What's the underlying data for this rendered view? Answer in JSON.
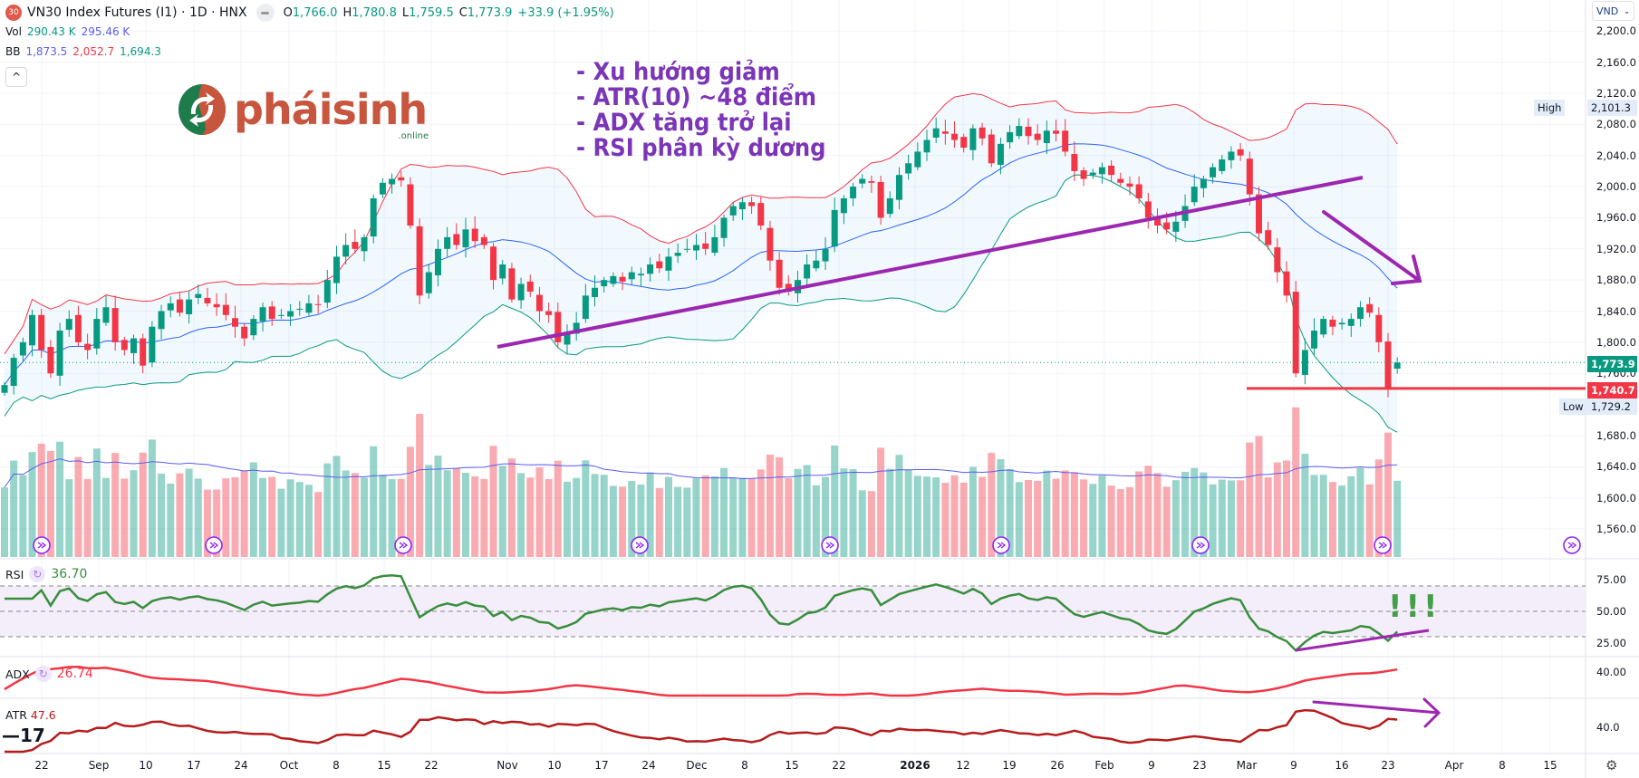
{
  "header": {
    "badge": "30",
    "title": "VN30 Index Futures (I1) · 1D · HNX",
    "o_label": "O",
    "o": "1,766.0",
    "h_label": "H",
    "h": "1,780.8",
    "l_label": "L",
    "l": "1,759.5",
    "c_label": "C",
    "c": "1,773.9",
    "change": "+33.9 (+1.95%)"
  },
  "vol": {
    "label": "Vol",
    "value": "290.43 K",
    "ma": "295.46 K"
  },
  "bb": {
    "label": "BB",
    "basis": "1,873.5",
    "upper": "2,052.7",
    "lower": "1,694.3"
  },
  "collapse_icon": "^",
  "currency": "VND",
  "logo": {
    "text": "pháisinh",
    "sub": ".online"
  },
  "notes": [
    "- Xu hướng giảm",
    "- ATR(10) ~48 điểm",
    "- ADX tăng trở lại",
    "- RSI phân kỳ dương"
  ],
  "exclaim": "!!!",
  "price_axis": {
    "ticks": [
      "2,200.0",
      "2,160.0",
      "2,120.0",
      "2,080.0",
      "2,040.0",
      "2,000.0",
      "1,960.0",
      "1,920.0",
      "1,880.0",
      "1,840.0",
      "1,800.0",
      "1,760.0",
      "1,680.0",
      "1,640.0",
      "1,600.0",
      "1,560.0"
    ]
  },
  "tags": {
    "high_label": "High",
    "high": "2,101.3",
    "last": "1,773.9",
    "level": "1,740.7",
    "low_label": "Low",
    "low": "1,729.2"
  },
  "rsi": {
    "label": "RSI",
    "value": "36.70",
    "ticks": [
      "75.00",
      "50.00",
      "25.00"
    ]
  },
  "adx": {
    "label": "ADX",
    "value": "26.74",
    "tick": "40.00"
  },
  "atr": {
    "label": "ATR",
    "value": "47.6",
    "tick": "40.0"
  },
  "time_axis": [
    "22",
    "Sep",
    "10",
    "17",
    "24",
    "Oct",
    "8",
    "15",
    "22",
    "Nov",
    "10",
    "17",
    "24",
    "Dec",
    "8",
    "15",
    "22",
    "2026",
    "12",
    "19",
    "26",
    "Feb",
    "9",
    "23",
    "Mar",
    "9",
    "16",
    "23",
    "Apr",
    "8",
    "15"
  ],
  "colors": {
    "up": "#089981",
    "down": "#f23645",
    "bb_basis": "#2962ff",
    "bb_upper": "#f23645",
    "bb_lower": "#089981",
    "rsi": "#388e3c",
    "adx": "#f23645",
    "atr": "#b71c1c",
    "drawing": "#9c27b0",
    "note_text": "#7b35b7"
  },
  "chart_data": {
    "type": "candlestick",
    "symbol": "VN30 Index Futures (I1)",
    "interval": "1D",
    "ylim": [
      1540,
      2220
    ],
    "last": {
      "open": 1766.0,
      "high": 1780.8,
      "low": 1759.5,
      "close": 1773.9
    },
    "closes": [
      1745,
      1780,
      1800,
      1835,
      1790,
      1760,
      1815,
      1830,
      1800,
      1790,
      1830,
      1845,
      1800,
      1790,
      1805,
      1770,
      1820,
      1840,
      1850,
      1838,
      1855,
      1862,
      1850,
      1845,
      1835,
      1820,
      1805,
      1830,
      1845,
      1830,
      1835,
      1840,
      1843,
      1850,
      1848,
      1880,
      1910,
      1925,
      1920,
      1935,
      1985,
      2005,
      2010,
      2008,
      1950,
      1860,
      1890,
      1920,
      1935,
      1925,
      1945,
      1930,
      1925,
      1880,
      1900,
      1855,
      1875,
      1865,
      1840,
      1835,
      1800,
      1810,
      1825,
      1860,
      1870,
      1880,
      1885,
      1878,
      1890,
      1888,
      1900,
      1895,
      1910,
      1915,
      1920,
      1925,
      1920,
      1935,
      1960,
      1975,
      1980,
      1975,
      1950,
      1905,
      1870,
      1865,
      1880,
      1900,
      1905,
      1920,
      1970,
      1985,
      2000,
      2010,
      2005,
      1960,
      1985,
      2015,
      2030,
      2045,
      2060,
      2075,
      2068,
      2060,
      2050,
      2075,
      2062,
      2030,
      2055,
      2070,
      2078,
      2065,
      2060,
      2072,
      2068,
      2045,
      2020,
      2010,
      2018,
      2025,
      2015,
      2005,
      2000,
      1985,
      1960,
      1950,
      1945,
      1955,
      1975,
      2000,
      2010,
      2025,
      2035,
      2045,
      2040,
      1990,
      1940,
      1925,
      1890,
      1860,
      1760,
      1790,
      1815,
      1830,
      1820,
      1825,
      1830,
      1845,
      1838,
      1800,
      1740.0,
      1773.9
    ],
    "support_level": 1740.7,
    "high": 2101.3,
    "low": 1729.2
  }
}
